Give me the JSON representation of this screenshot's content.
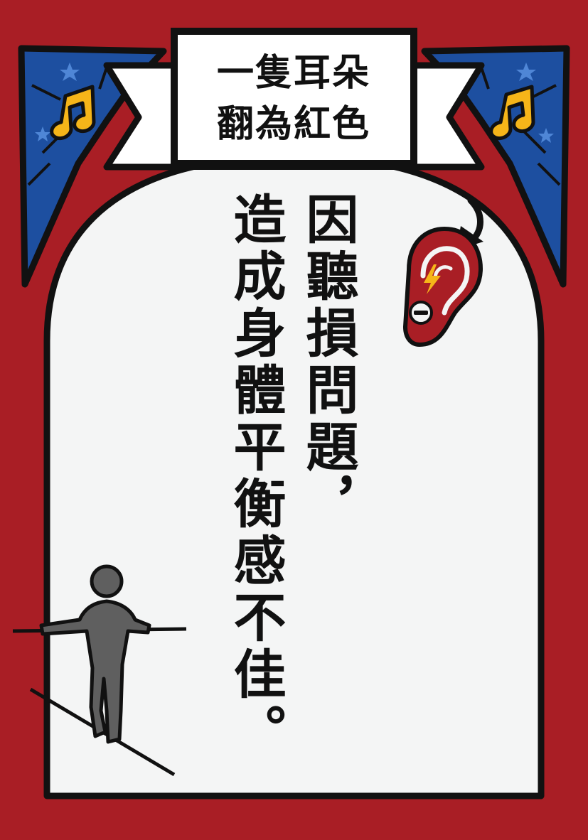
{
  "banner": {
    "line1": "一隻耳朵",
    "line2": "翻為紅色"
  },
  "main_text": {
    "column1": "因聽損問題，",
    "column2": "造成身體平衡感不佳。"
  },
  "colors": {
    "background": "#a91e25",
    "panel": "#f4f5f5",
    "outline": "#111111",
    "corner_blue": "#1d4fa0",
    "note_yellow": "#f6b519",
    "figure_gray": "#5f5f5f"
  },
  "icons": [
    "music-note-icon",
    "ear-icon",
    "lightning-icon",
    "minus-icon",
    "curved-arrow-icon",
    "tightrope-walker-icon",
    "sparkle-icon"
  ]
}
